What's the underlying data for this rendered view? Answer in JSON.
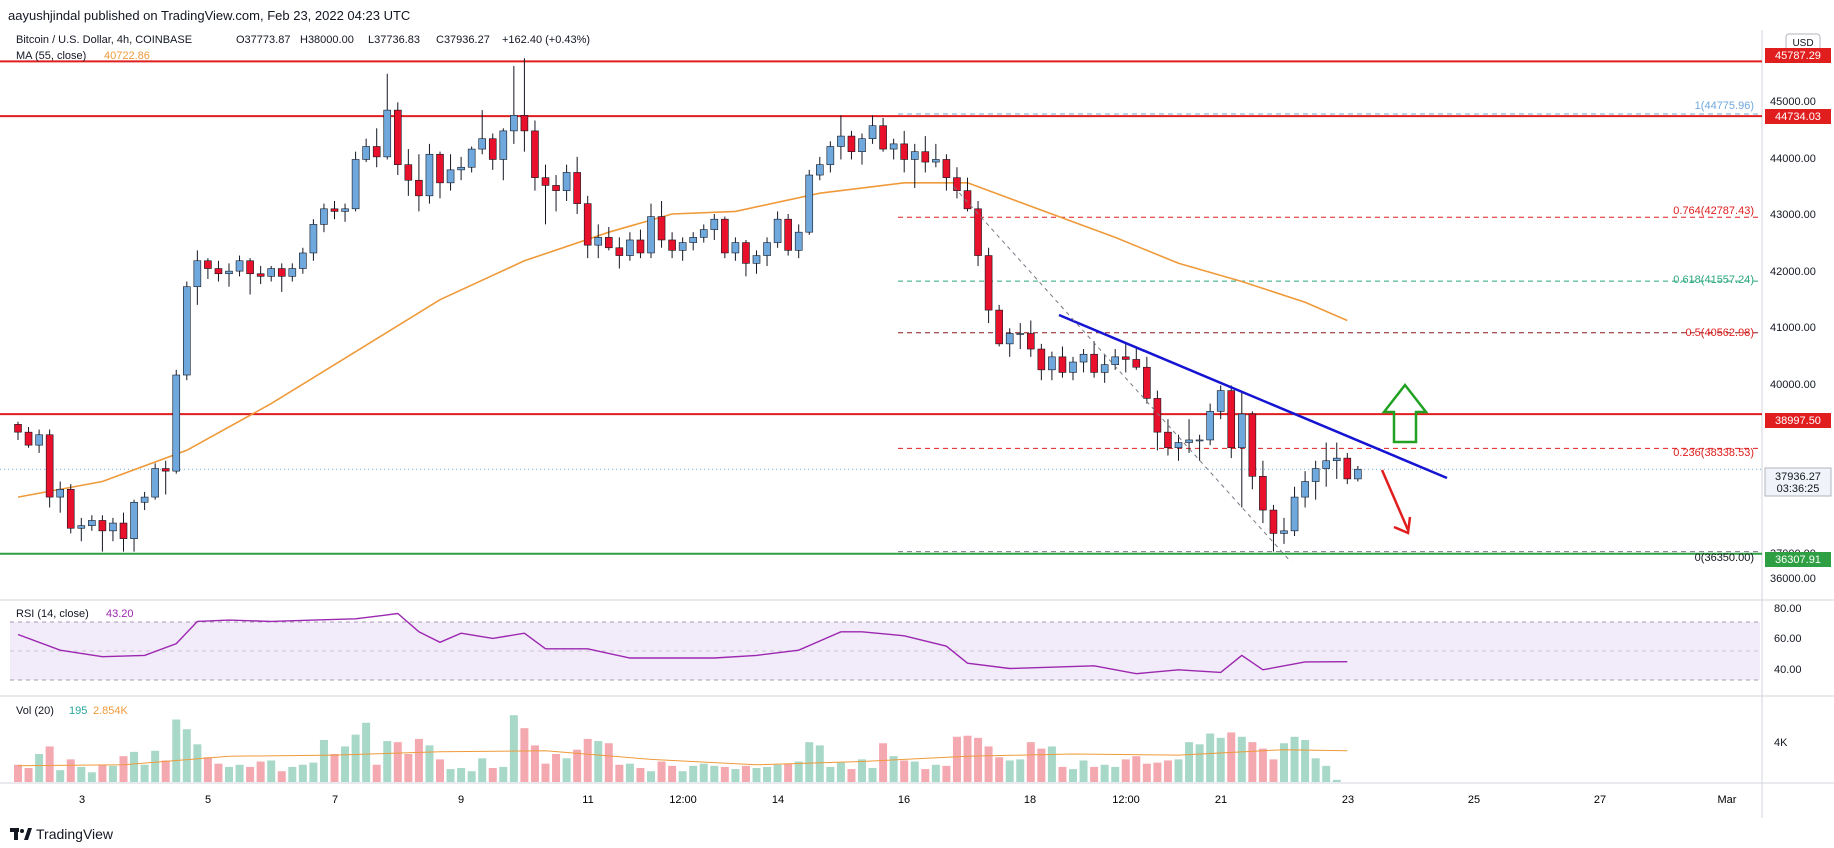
{
  "header": {
    "publisher": "aayushjindal published on TradingView.com, Feb 23, 2022 04:23 UTC"
  },
  "legend": {
    "symbol": "Bitcoin / U.S. Dollar, 4h, COINBASE",
    "open": "O37773.87",
    "high": "H38000.00",
    "low": "L37736.83",
    "close": "C37936.27",
    "change": "+162.40 (+0.43%)",
    "ma_label": "MA (55, close)",
    "ma_value": "40722.86"
  },
  "currency_button": "USD",
  "price_axis": {
    "ticks": [
      "45000.00",
      "44000.00",
      "43000.00",
      "42000.00",
      "41000.00",
      "40000.00",
      "37000.00",
      "36000.00"
    ],
    "badges": {
      "r1": "45787.29",
      "r2": "44734.03",
      "r3": "38997.50",
      "last": "37936.27",
      "countdown": "03:36:25",
      "s1": "36307.91"
    }
  },
  "fib": {
    "l1": "1(44775.96)",
    "l0764": "0.764(42787.43)",
    "l0618": "0.618(41557.24)",
    "l05": "0.5(40562.98)",
    "l0236": "0.236(38338.53)",
    "l0": "0(36350.00)"
  },
  "rsi": {
    "label": "RSI (14, close)",
    "value": "43.20",
    "ticks": [
      "80.00",
      "60.00",
      "40.00"
    ]
  },
  "vol": {
    "label": "Vol (20)",
    "value1": "195",
    "value2": "2.854K",
    "tick": "4K"
  },
  "time_axis": [
    "3",
    "5",
    "7",
    "9",
    "11",
    "12:00",
    "14",
    "16",
    "18",
    "12:00",
    "21",
    "23",
    "25",
    "27",
    "Mar"
  ],
  "footer": {
    "brand": "TradingView"
  },
  "colors": {
    "up": "#6fa8dc",
    "down": "#e8102a",
    "resistance": "#e01e1e",
    "support": "#2ea043",
    "trendline": "#1414d2",
    "ma": "#ef9a3a",
    "rsi": "#9c27b0",
    "arrow_up": "#21a121",
    "arrow_down": "#e01e1e"
  },
  "chart_data": {
    "type": "candlestick",
    "symbol": "Bitcoin / U.S. Dollar",
    "interval": "4h",
    "y_range": [
      35900,
      46200
    ],
    "x_range_dates": [
      "Feb 2",
      "Mar 1"
    ],
    "candles": [
      [
        38800,
        38850,
        38500,
        38650
      ],
      [
        38650,
        38750,
        38350,
        38400
      ],
      [
        38400,
        38700,
        38250,
        38600
      ],
      [
        38600,
        38700,
        37200,
        37400
      ],
      [
        37400,
        37700,
        37100,
        37550
      ],
      [
        37550,
        37650,
        36700,
        36800
      ],
      [
        36800,
        37000,
        36550,
        36850
      ],
      [
        36850,
        37050,
        36750,
        36950
      ],
      [
        36950,
        37050,
        36350,
        36750
      ],
      [
        36750,
        37000,
        36550,
        36900
      ],
      [
        36900,
        37100,
        36350,
        36600
      ],
      [
        36600,
        37350,
        36350,
        37300
      ],
      [
        37300,
        37500,
        37150,
        37400
      ],
      [
        37400,
        38050,
        37350,
        37950
      ],
      [
        37950,
        38100,
        37450,
        37900
      ],
      [
        37900,
        39850,
        37850,
        39750
      ],
      [
        39750,
        41550,
        39650,
        41450
      ],
      [
        41450,
        42150,
        41100,
        41950
      ],
      [
        41950,
        42000,
        41600,
        41800
      ],
      [
        41800,
        41950,
        41550,
        41700
      ],
      [
        41700,
        41900,
        41450,
        41750
      ],
      [
        41750,
        42050,
        41650,
        41950
      ],
      [
        41950,
        42000,
        41300,
        41700
      ],
      [
        41700,
        41850,
        41500,
        41650
      ],
      [
        41650,
        41850,
        41550,
        41800
      ],
      [
        41800,
        41900,
        41350,
        41650
      ],
      [
        41650,
        41900,
        41550,
        41800
      ],
      [
        41800,
        42200,
        41700,
        42100
      ],
      [
        42100,
        42750,
        41950,
        42650
      ],
      [
        42650,
        43050,
        42500,
        42950
      ],
      [
        42950,
        43100,
        42750,
        42900
      ],
      [
        42900,
        43050,
        42700,
        42950
      ],
      [
        42950,
        44050,
        42900,
        43900
      ],
      [
        43900,
        44300,
        43850,
        44150
      ],
      [
        44150,
        44500,
        43750,
        43950
      ],
      [
        43950,
        45550,
        43900,
        44850
      ],
      [
        44850,
        45000,
        43600,
        43800
      ],
      [
        43800,
        44100,
        43200,
        43500
      ],
      [
        43500,
        44000,
        42900,
        43200
      ],
      [
        43200,
        44200,
        43050,
        44000
      ],
      [
        44000,
        44050,
        43150,
        43450
      ],
      [
        43450,
        44000,
        43300,
        43700
      ],
      [
        43700,
        43950,
        43500,
        43750
      ],
      [
        43750,
        44150,
        43650,
        44100
      ],
      [
        44100,
        44850,
        44000,
        44300
      ],
      [
        44300,
        44400,
        43700,
        43900
      ],
      [
        43900,
        44500,
        43500,
        44450
      ],
      [
        44450,
        45700,
        44200,
        44750
      ],
      [
        44750,
        45850,
        44050,
        44450
      ],
      [
        44450,
        44650,
        43300,
        43550
      ],
      [
        43550,
        43800,
        42650,
        43400
      ],
      [
        43400,
        43600,
        42900,
        43300
      ],
      [
        43300,
        43800,
        43100,
        43650
      ],
      [
        43650,
        43950,
        42850,
        43050
      ],
      [
        43050,
        43200,
        42000,
        42250
      ],
      [
        42250,
        42650,
        42000,
        42400
      ],
      [
        42400,
        42600,
        42150,
        42200
      ],
      [
        42200,
        42400,
        41800,
        42050
      ],
      [
        42050,
        42500,
        41950,
        42350
      ],
      [
        42350,
        42550,
        42000,
        42100
      ],
      [
        42100,
        43050,
        42000,
        42800
      ],
      [
        42800,
        43100,
        42200,
        42350
      ],
      [
        42350,
        42500,
        42000,
        42150
      ],
      [
        42150,
        42400,
        41950,
        42300
      ],
      [
        42300,
        42500,
        42150,
        42400
      ],
      [
        42400,
        42650,
        42300,
        42550
      ],
      [
        42550,
        42850,
        42350,
        42750
      ],
      [
        42750,
        42800,
        42000,
        42100
      ],
      [
        42100,
        42400,
        41950,
        42300
      ],
      [
        42300,
        42350,
        41650,
        41900
      ],
      [
        41900,
        42150,
        41700,
        42050
      ],
      [
        42050,
        42400,
        41850,
        42300
      ],
      [
        42300,
        42900,
        42200,
        42750
      ],
      [
        42750,
        42850,
        42050,
        42150
      ],
      [
        42150,
        42650,
        42000,
        42500
      ],
      [
        42500,
        43700,
        42450,
        43600
      ],
      [
        43600,
        43950,
        43500,
        43800
      ],
      [
        43800,
        44250,
        43650,
        44150
      ],
      [
        44150,
        44750,
        43900,
        44350
      ],
      [
        44350,
        44450,
        43900,
        44050
      ],
      [
        44050,
        44400,
        43800,
        44300
      ],
      [
        44300,
        44750,
        44200,
        44550
      ],
      [
        44550,
        44700,
        44050,
        44100
      ],
      [
        44100,
        44300,
        43900,
        44200
      ],
      [
        44200,
        44450,
        43650,
        43900
      ],
      [
        43900,
        44200,
        43350,
        44050
      ],
      [
        44050,
        44350,
        43650,
        43850
      ],
      [
        43850,
        44200,
        43750,
        43900
      ],
      [
        43900,
        44000,
        43300,
        43550
      ],
      [
        43550,
        43750,
        43150,
        43300
      ],
      [
        43300,
        43550,
        42900,
        42950
      ],
      [
        42950,
        43100,
        41850,
        42050
      ],
      [
        42050,
        42200,
        40750,
        41000
      ],
      [
        41000,
        41100,
        40300,
        40350
      ],
      [
        40350,
        40650,
        40100,
        40550
      ],
      [
        40550,
        40750,
        40250,
        40550
      ],
      [
        40550,
        40800,
        40100,
        40250
      ],
      [
        40250,
        40350,
        39650,
        39850
      ],
      [
        39850,
        40200,
        39650,
        40100
      ],
      [
        40100,
        40300,
        39700,
        39800
      ],
      [
        39800,
        40100,
        39650,
        40000
      ],
      [
        40000,
        40250,
        39800,
        40150
      ],
      [
        40150,
        40400,
        39700,
        39800
      ],
      [
        39800,
        40150,
        39600,
        39950
      ],
      [
        39950,
        40250,
        39850,
        40100
      ],
      [
        40100,
        40350,
        39800,
        40050
      ],
      [
        40050,
        40300,
        39850,
        39900
      ],
      [
        39900,
        40100,
        39200,
        39300
      ],
      [
        39300,
        39450,
        38300,
        38650
      ],
      [
        38650,
        38900,
        38200,
        38350
      ],
      [
        38350,
        38600,
        38100,
        38450
      ],
      [
        38450,
        38900,
        38250,
        38500
      ],
      [
        38500,
        38600,
        38100,
        38500
      ],
      [
        38500,
        39200,
        38400,
        39050
      ],
      [
        39050,
        39550,
        38900,
        39450
      ],
      [
        39450,
        39550,
        38150,
        38350
      ],
      [
        38350,
        39450,
        37200,
        39000
      ],
      [
        39000,
        39050,
        37550,
        37800
      ],
      [
        37800,
        38100,
        36900,
        37150
      ],
      [
        37150,
        37250,
        36350,
        36700
      ],
      [
        36700,
        37000,
        36500,
        36750
      ],
      [
        36750,
        37600,
        36650,
        37400
      ],
      [
        37400,
        37900,
        37200,
        37700
      ],
      [
        37700,
        38100,
        37350,
        37950
      ],
      [
        37950,
        38450,
        37600,
        38100
      ],
      [
        38100,
        38450,
        37750,
        38150
      ],
      [
        38150,
        38250,
        37650,
        37750
      ],
      [
        37750,
        38000,
        37700,
        37936
      ]
    ],
    "ma55": [
      [
        0,
        37400
      ],
      [
        8,
        37700
      ],
      [
        16,
        38300
      ],
      [
        24,
        39200
      ],
      [
        32,
        40200
      ],
      [
        40,
        41200
      ],
      [
        48,
        41950
      ],
      [
        56,
        42500
      ],
      [
        62,
        42850
      ],
      [
        68,
        42900
      ],
      [
        76,
        43250
      ],
      [
        84,
        43450
      ],
      [
        90,
        43450
      ],
      [
        96,
        43000
      ],
      [
        104,
        42400
      ],
      [
        110,
        41900
      ],
      [
        116,
        41550
      ],
      [
        122,
        41150
      ],
      [
        126,
        40800
      ]
    ],
    "rsi": [
      [
        0,
        64
      ],
      [
        4,
        52
      ],
      [
        8,
        47
      ],
      [
        12,
        48
      ],
      [
        15,
        57
      ],
      [
        17,
        74
      ],
      [
        20,
        75
      ],
      [
        24,
        74
      ],
      [
        28,
        75
      ],
      [
        32,
        76
      ],
      [
        34,
        78
      ],
      [
        36,
        80
      ],
      [
        38,
        66
      ],
      [
        40,
        58
      ],
      [
        42,
        65
      ],
      [
        45,
        61
      ],
      [
        48,
        65
      ],
      [
        50,
        53
      ],
      [
        54,
        53
      ],
      [
        58,
        46
      ],
      [
        62,
        46
      ],
      [
        66,
        46
      ],
      [
        70,
        48
      ],
      [
        74,
        52
      ],
      [
        78,
        66
      ],
      [
        80,
        66
      ],
      [
        84,
        63
      ],
      [
        88,
        55
      ],
      [
        90,
        42
      ],
      [
        94,
        38
      ],
      [
        98,
        39
      ],
      [
        102,
        40
      ],
      [
        106,
        34
      ],
      [
        110,
        37
      ],
      [
        114,
        35
      ],
      [
        116,
        48
      ],
      [
        118,
        37
      ],
      [
        122,
        43
      ],
      [
        126,
        43.2
      ]
    ],
    "rsi_range": [
      20,
      85
    ],
    "volume": [
      1.6,
      1.3,
      2.6,
      3.3,
      1.1,
      2.1,
      1.4,
      0.9,
      1.6,
      1.5,
      2.4,
      2.8,
      1.6,
      2.9,
      2.0,
      5.8,
      4.9,
      3.5,
      2.3,
      1.7,
      1.4,
      1.6,
      1.4,
      1.9,
      2.0,
      1.0,
      1.4,
      1.6,
      1.8,
      3.9,
      2.6,
      3.3,
      4.4,
      5.5,
      1.6,
      3.8,
      3.7,
      2.6,
      4.0,
      3.4,
      2.1,
      1.2,
      1.3,
      1.0,
      2.2,
      1.3,
      1.4,
      6.2,
      5.0,
      3.4,
      1.7,
      2.6,
      2.2,
      3.0,
      4.0,
      3.8,
      3.6,
      1.6,
      1.7,
      1.3,
      1.0,
      1.9,
      1.5,
      1.0,
      1.5,
      1.7,
      1.5,
      1.4,
      1.2,
      1.5,
      1.3,
      1.4,
      1.6,
      1.7,
      1.9,
      3.7,
      3.4,
      1.4,
      1.8,
      1.2,
      2.1,
      1.3,
      3.6,
      2.4,
      2.0,
      1.9,
      1.2,
      1.6,
      1.5,
      4.2,
      4.3,
      4.1,
      3.3,
      2.3,
      2.0,
      2.1,
      3.7,
      3.1,
      3.3,
      1.4,
      1.2,
      2.0,
      1.4,
      1.6,
      1.4,
      2.1,
      2.4,
      1.7,
      1.8,
      2.0,
      2.1,
      3.7,
      3.5,
      4.5,
      4.1,
      4.6,
      4.2,
      3.7,
      3.1,
      2.1,
      3.6,
      4.2,
      3.9,
      2.2,
      1.5,
      0.2
    ],
    "vol_ma": [
      [
        0,
        1.5
      ],
      [
        10,
        1.6
      ],
      [
        20,
        2.4
      ],
      [
        30,
        2.5
      ],
      [
        40,
        2.8
      ],
      [
        50,
        2.9
      ],
      [
        60,
        2.1
      ],
      [
        70,
        1.6
      ],
      [
        80,
        1.9
      ],
      [
        90,
        2.4
      ],
      [
        100,
        2.6
      ],
      [
        110,
        2.5
      ],
      [
        120,
        3.0
      ],
      [
        126,
        2.9
      ]
    ],
    "vol_max": 6.5,
    "horizontal_levels": [
      45787.29,
      44734.03,
      38997.5,
      36307.91
    ],
    "fib_levels": [
      44775.96,
      42787.43,
      41557.24,
      40562.98,
      38338.53,
      36350.0
    ]
  }
}
